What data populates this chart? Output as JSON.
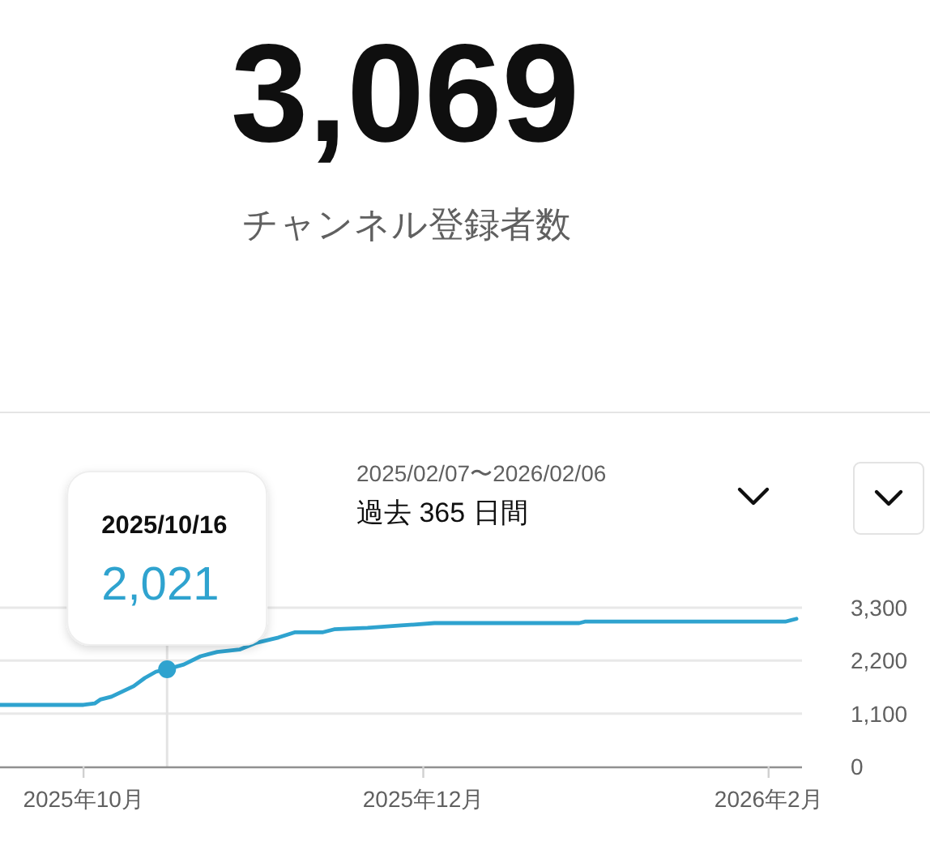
{
  "chart_data": {
    "type": "line",
    "title": "3,069",
    "subtitle": "チャンネル登録者数",
    "annotations": [
      "2025/02/07〜2026/02/06",
      "過去 365 日間",
      "2025/10/16",
      {
        "text": "2,021",
        "x": "2025-10-16",
        "y": 2021
      }
    ],
    "x": [
      "2025-09-16",
      "2025-10-01",
      "2025-10-03",
      "2025-10-04",
      "2025-10-06",
      "2025-10-08",
      "2025-10-10",
      "2025-10-12",
      "2025-10-14",
      "2025-10-16",
      "2025-10-19",
      "2025-10-22",
      "2025-10-25",
      "2025-10-29",
      "2025-11-01",
      "2025-11-05",
      "2025-11-08",
      "2025-11-13",
      "2025-11-15",
      "2025-11-21",
      "2025-11-27",
      "2025-12-03",
      "2025-12-29",
      "2025-12-30",
      "2026-02-04",
      "2026-02-06"
    ],
    "series": [
      {
        "color": "#2fa3cf",
        "values": [
          1280,
          1280,
          1310,
          1390,
          1450,
          1560,
          1670,
          1840,
          1970,
          2021,
          2120,
          2290,
          2380,
          2430,
          2570,
          2680,
          2790,
          2790,
          2850,
          2880,
          2930,
          2980,
          2980,
          3010,
          3010,
          3069
        ]
      }
    ],
    "xlim": [
      "2025-09-16",
      "2026-02-07"
    ],
    "xticks": [
      {
        "value": "2025-10-01",
        "label": "2025年10月"
      },
      {
        "value": "2025-12-01",
        "label": "2025年12月"
      },
      {
        "value": "2026-02-01",
        "label": "2026年2月"
      }
    ],
    "ylim": [
      0,
      3300
    ],
    "yticks": [
      0,
      {
        "value": 1100,
        "label": "1,100"
      },
      {
        "value": 2200,
        "label": "2,200"
      },
      {
        "value": 3300,
        "label": "3,300"
      }
    ],
    "grid": "y",
    "ref_lines": [
      {
        "axis": "x",
        "value": "2025-10-16",
        "color": "#e3e3e3"
      }
    ]
  }
}
